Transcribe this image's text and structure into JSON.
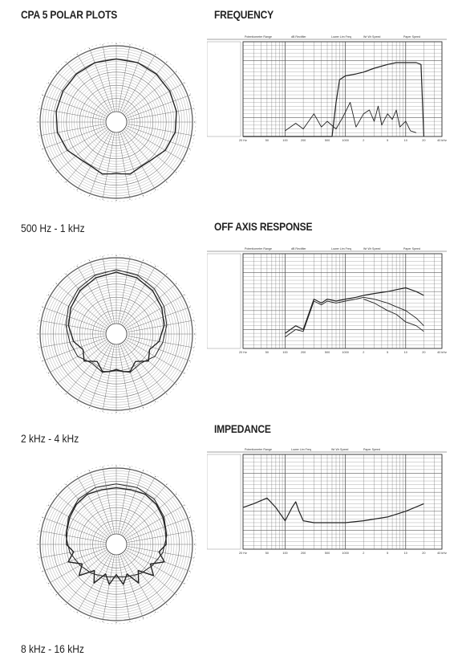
{
  "titles": {
    "polar": "CPA 5 POLAR PLOTS",
    "frequency": "FREQUENCY",
    "off_axis": "OFF AXIS RESPONSE",
    "impedance": "IMPEDANCE"
  },
  "polar_captions": [
    "500 Hz - 1 kHz",
    "2 kHz - 4 kHz",
    "8 kHz - 16 kHz"
  ],
  "chart_data": [
    {
      "type": "polar",
      "caption": "500 Hz - 1 kHz",
      "rings": 25,
      "spokes": 36,
      "series": [
        {
          "name": "",
          "angles_deg": [
            0,
            20,
            40,
            60,
            80,
            100,
            120,
            140,
            155,
            165,
            175,
            180,
            185,
            195,
            205,
            220,
            240,
            260,
            280,
            300,
            320,
            340,
            360
          ],
          "radius": [
            0.8,
            0.8,
            0.79,
            0.78,
            0.77,
            0.75,
            0.7,
            0.62,
            0.62,
            0.66,
            0.63,
            0.62,
            0.63,
            0.66,
            0.62,
            0.62,
            0.7,
            0.75,
            0.77,
            0.78,
            0.79,
            0.8,
            0.8
          ]
        }
      ]
    },
    {
      "type": "polar",
      "caption": "2 kHz - 4 kHz",
      "rings": 25,
      "spokes": 36,
      "series": [
        {
          "name": "",
          "angles_deg": [
            0,
            20,
            40,
            60,
            80,
            100,
            115,
            130,
            145,
            160,
            170,
            180,
            190,
            200,
            215,
            230,
            245,
            260,
            280,
            300,
            320,
            340,
            360
          ],
          "radius": [
            0.78,
            0.75,
            0.7,
            0.64,
            0.58,
            0.5,
            0.4,
            0.48,
            0.35,
            0.45,
            0.42,
            0.38,
            0.42,
            0.45,
            0.35,
            0.48,
            0.4,
            0.5,
            0.58,
            0.64,
            0.7,
            0.75,
            0.78
          ]
        },
        {
          "name": "",
          "angles_deg": [
            0,
            20,
            40,
            60,
            80,
            100,
            120,
            140,
            160,
            180,
            200,
            220,
            240,
            260,
            280,
            300,
            320,
            340,
            360
          ],
          "radius": [
            0.82,
            0.79,
            0.74,
            0.68,
            0.62,
            0.56,
            0.52,
            0.42,
            0.46,
            0.4,
            0.46,
            0.42,
            0.52,
            0.56,
            0.62,
            0.68,
            0.74,
            0.79,
            0.82
          ]
        }
      ]
    },
    {
      "type": "polar",
      "caption": "8 kHz - 16 kHz",
      "rings": 25,
      "spokes": 36,
      "series": [
        {
          "name": "",
          "angles_deg": [
            0,
            15,
            30,
            45,
            60,
            75,
            90,
            100,
            110,
            120,
            130,
            140,
            150,
            160,
            170,
            180,
            190,
            200,
            210,
            220,
            230,
            240,
            250,
            260,
            270,
            285,
            300,
            315,
            330,
            345,
            360
          ],
          "radius": [
            0.7,
            0.7,
            0.72,
            0.7,
            0.66,
            0.62,
            0.6,
            0.5,
            0.62,
            0.44,
            0.58,
            0.36,
            0.52,
            0.32,
            0.46,
            0.3,
            0.46,
            0.32,
            0.52,
            0.36,
            0.58,
            0.44,
            0.62,
            0.5,
            0.6,
            0.62,
            0.66,
            0.7,
            0.72,
            0.7,
            0.7
          ]
        },
        {
          "name": "",
          "angles_deg": [
            0,
            20,
            40,
            60,
            80,
            100,
            120,
            140,
            160,
            180,
            200,
            220,
            240,
            260,
            280,
            300,
            320,
            340,
            360
          ],
          "radius": [
            0.76,
            0.76,
            0.74,
            0.68,
            0.62,
            0.56,
            0.48,
            0.42,
            0.36,
            0.34,
            0.36,
            0.42,
            0.48,
            0.56,
            0.62,
            0.68,
            0.74,
            0.76,
            0.76
          ]
        }
      ]
    },
    {
      "type": "line",
      "panel": "FREQUENCY",
      "x_scale": "log",
      "xlim": [
        20,
        40000
      ],
      "ylim": [
        0,
        50
      ],
      "x_tick_labels": [
        "20 Hz",
        "50",
        "100",
        "200",
        "500",
        "1000",
        "2",
        "5",
        "10",
        "20",
        "40 kHz"
      ],
      "header_labels": [
        "Potentiometer Range",
        "dB Rectifier",
        "Lower Lim Freq",
        "Wr Wr Speed",
        "Paper Speed"
      ],
      "series": [
        {
          "name": "",
          "x": [
            20,
            600,
            700,
            800,
            1000,
            1500,
            2000,
            3000,
            5000,
            7000,
            10000,
            15000,
            18000,
            20000
          ],
          "y": [
            0,
            0,
            18,
            30,
            32,
            33,
            34,
            36,
            38,
            39,
            39,
            39,
            38,
            0
          ]
        },
        {
          "name": "",
          "x": [
            100,
            150,
            200,
            300,
            400,
            500,
            700,
            900,
            1200,
            1500,
            2000,
            2500,
            3000,
            3500,
            4000,
            5000,
            6000,
            7000,
            8000,
            10000,
            12000,
            15000
          ],
          "y": [
            3,
            7,
            4,
            12,
            5,
            8,
            4,
            10,
            18,
            5,
            12,
            14,
            8,
            16,
            6,
            12,
            9,
            14,
            5,
            8,
            3,
            2
          ]
        }
      ]
    },
    {
      "type": "line",
      "panel": "OFF AXIS RESPONSE",
      "x_scale": "log",
      "xlim": [
        20,
        40000
      ],
      "ylim": [
        0,
        50
      ],
      "x_tick_labels": [
        "20 Hz",
        "50",
        "100",
        "200",
        "500",
        "1000",
        "2",
        "5",
        "10",
        "20",
        "40 kHz"
      ],
      "header_labels": [
        "Potentiometer Range",
        "dB Rectifier",
        "Lower Lim Freq",
        "Wr Wr Speed",
        "Paper Speed"
      ],
      "series": [
        {
          "name": "",
          "x": [
            100,
            150,
            200,
            300,
            400,
            500,
            700,
            1000,
            1500,
            2000,
            3000,
            5000,
            7000,
            10000,
            15000,
            20000
          ],
          "y": [
            8,
            12,
            10,
            26,
            24,
            26,
            25,
            26,
            27,
            28,
            29,
            30,
            31,
            32,
            30,
            28
          ]
        },
        {
          "name": "",
          "x": [
            100,
            150,
            200,
            300,
            400,
            500,
            700,
            1000,
            1500,
            2000,
            3000,
            5000,
            7000,
            10000,
            15000,
            20000
          ],
          "y": [
            6,
            10,
            9,
            25,
            23,
            25,
            24,
            25,
            26,
            27,
            26,
            24,
            22,
            20,
            16,
            12
          ]
        },
        {
          "name": "",
          "x": [
            2000,
            3000,
            5000,
            7000,
            10000,
            15000,
            20000
          ],
          "y": [
            26,
            24,
            20,
            18,
            14,
            12,
            9
          ]
        }
      ]
    },
    {
      "type": "line",
      "panel": "IMPEDANCE",
      "x_scale": "log",
      "xlim": [
        20,
        40000
      ],
      "ylim": [
        0,
        50
      ],
      "x_tick_labels": [
        "20 Hz",
        "50",
        "100",
        "200",
        "500",
        "1000",
        "2",
        "5",
        "10",
        "20",
        "40 kHz"
      ],
      "header_labels": [
        "Potentiometer Range",
        "Lower Lim Freq",
        "Wr Wr Speed",
        "Paper Speed"
      ],
      "series": [
        {
          "name": "",
          "x": [
            20,
            30,
            50,
            70,
            100,
            130,
            150,
            170,
            200,
            300,
            500,
            700,
            1000,
            2000,
            5000,
            10000,
            20000
          ],
          "y": [
            22,
            24,
            27,
            22,
            15,
            22,
            25,
            20,
            15,
            14,
            14,
            14,
            14,
            15,
            17,
            20,
            24
          ]
        }
      ]
    }
  ]
}
